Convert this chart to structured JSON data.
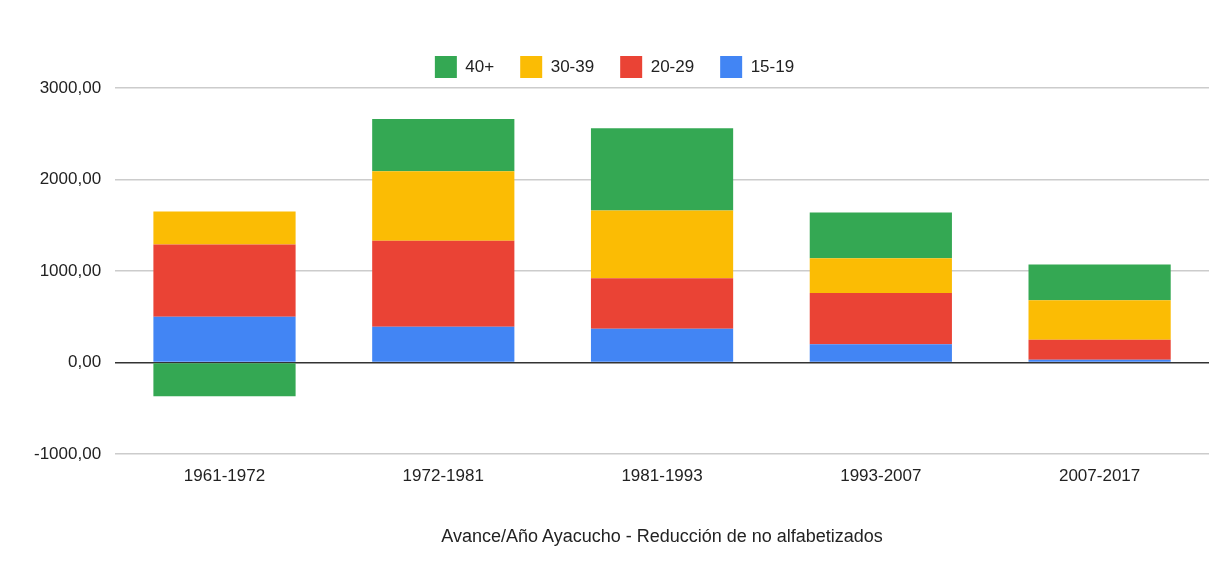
{
  "chart_data": {
    "type": "bar",
    "stacked": true,
    "xlabel": "Avance/Año Ayacucho - Reducción de no alfabetizados",
    "categories": [
      "1961-1972",
      "1972-1981",
      "1981-1993",
      "1993-2007",
      "2007-2017"
    ],
    "series": [
      {
        "name": "15-19",
        "color": "#4285f4",
        "values": [
          500,
          390,
          370,
          200,
          30
        ]
      },
      {
        "name": "20-29",
        "color": "#ea4335",
        "values": [
          790,
          940,
          550,
          560,
          220
        ]
      },
      {
        "name": "30-39",
        "color": "#fbbc04",
        "values": [
          360,
          760,
          740,
          380,
          430
        ]
      },
      {
        "name": "40+",
        "color": "#34a853",
        "values": [
          -370,
          570,
          900,
          500,
          390
        ]
      }
    ],
    "ylim": [
      -1000,
      3000
    ],
    "yticks": [
      {
        "value": -1000,
        "label": "-1000,00"
      },
      {
        "value": 0,
        "label": "0,00"
      },
      {
        "value": 1000,
        "label": "1000,00"
      },
      {
        "value": 2000,
        "label": "2000,00"
      },
      {
        "value": 3000,
        "label": "3000,00"
      }
    ],
    "grid": "y",
    "legend": "top"
  }
}
